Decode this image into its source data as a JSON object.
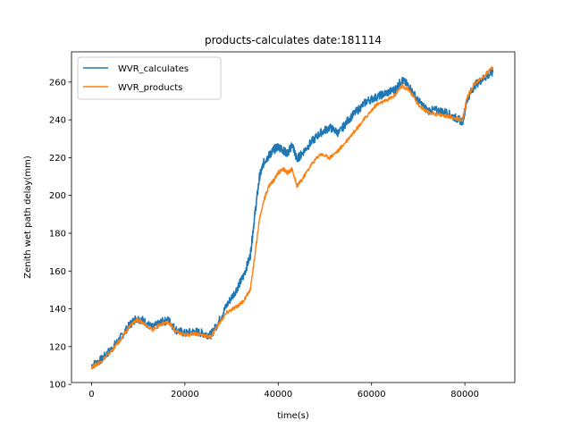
{
  "chart_data": {
    "type": "line",
    "title": "products-calculates date:181114",
    "xlabel": "time(s)",
    "ylabel": "Zenith wet path delay(mm)",
    "xlim": [
      -4300,
      90700
    ],
    "ylim": [
      101,
      276
    ],
    "xticks": [
      0,
      20000,
      40000,
      60000,
      80000
    ],
    "xtick_labels": [
      "0",
      "20000",
      "40000",
      "60000",
      "80000"
    ],
    "yticks": [
      100,
      120,
      140,
      160,
      180,
      200,
      220,
      240,
      260
    ],
    "ytick_labels": [
      "100",
      "120",
      "140",
      "160",
      "180",
      "200",
      "220",
      "240",
      "260"
    ],
    "grid": false,
    "legend_position": "top-left",
    "series": [
      {
        "name": "WVR_calculates",
        "color": "#1f77b4",
        "x": [
          0,
          2000,
          4000,
          6000,
          8000,
          9500,
          11000,
          13000,
          15000,
          16500,
          18000,
          20000,
          22000,
          24000,
          25500,
          27000,
          29000,
          31000,
          32500,
          34000,
          35000,
          36000,
          37000,
          38000,
          39000,
          40000,
          41000,
          42000,
          43000,
          44000,
          45000,
          47000,
          49000,
          51000,
          53000,
          55000,
          57000,
          59000,
          61000,
          63000,
          65000,
          66500,
          68000,
          70000,
          72000,
          74000,
          76000,
          78000,
          79500,
          80500,
          82000,
          84000,
          86000
        ],
        "y": [
          110,
          113,
          118,
          124,
          131,
          135,
          134,
          130,
          133,
          134,
          129,
          127,
          128,
          127,
          126,
          132,
          142,
          150,
          157,
          168,
          190,
          210,
          218,
          221,
          224,
          226,
          224,
          222,
          227,
          219,
          222,
          228,
          233,
          236,
          233,
          240,
          245,
          250,
          252,
          254,
          256,
          261,
          258,
          250,
          245,
          245,
          244,
          241,
          239,
          251,
          258,
          262,
          265
        ]
      },
      {
        "name": "WVR_products",
        "color": "#ff7f0e",
        "x": [
          0,
          2000,
          4000,
          6000,
          8000,
          9500,
          11000,
          13000,
          15000,
          16500,
          18000,
          20000,
          22000,
          24000,
          25500,
          27000,
          29000,
          31000,
          32500,
          34000,
          35000,
          36000,
          37000,
          38000,
          39000,
          40000,
          41000,
          42000,
          43000,
          44000,
          45000,
          47000,
          49000,
          51000,
          53000,
          55000,
          57000,
          59000,
          61000,
          63000,
          65000,
          66500,
          68000,
          70000,
          72000,
          74000,
          76000,
          78000,
          79500,
          80500,
          82000,
          84000,
          86000
        ],
        "y": [
          109,
          112,
          117,
          123,
          130,
          134,
          133,
          129,
          132,
          133,
          128,
          126,
          127,
          126,
          125,
          131,
          138,
          141,
          144,
          150,
          168,
          188,
          198,
          205,
          208,
          212,
          214,
          212,
          214,
          205,
          208,
          216,
          222,
          220,
          224,
          230,
          236,
          242,
          248,
          250,
          253,
          258,
          256,
          248,
          244,
          243,
          242,
          241,
          240,
          252,
          259,
          263,
          268
        ]
      }
    ]
  }
}
